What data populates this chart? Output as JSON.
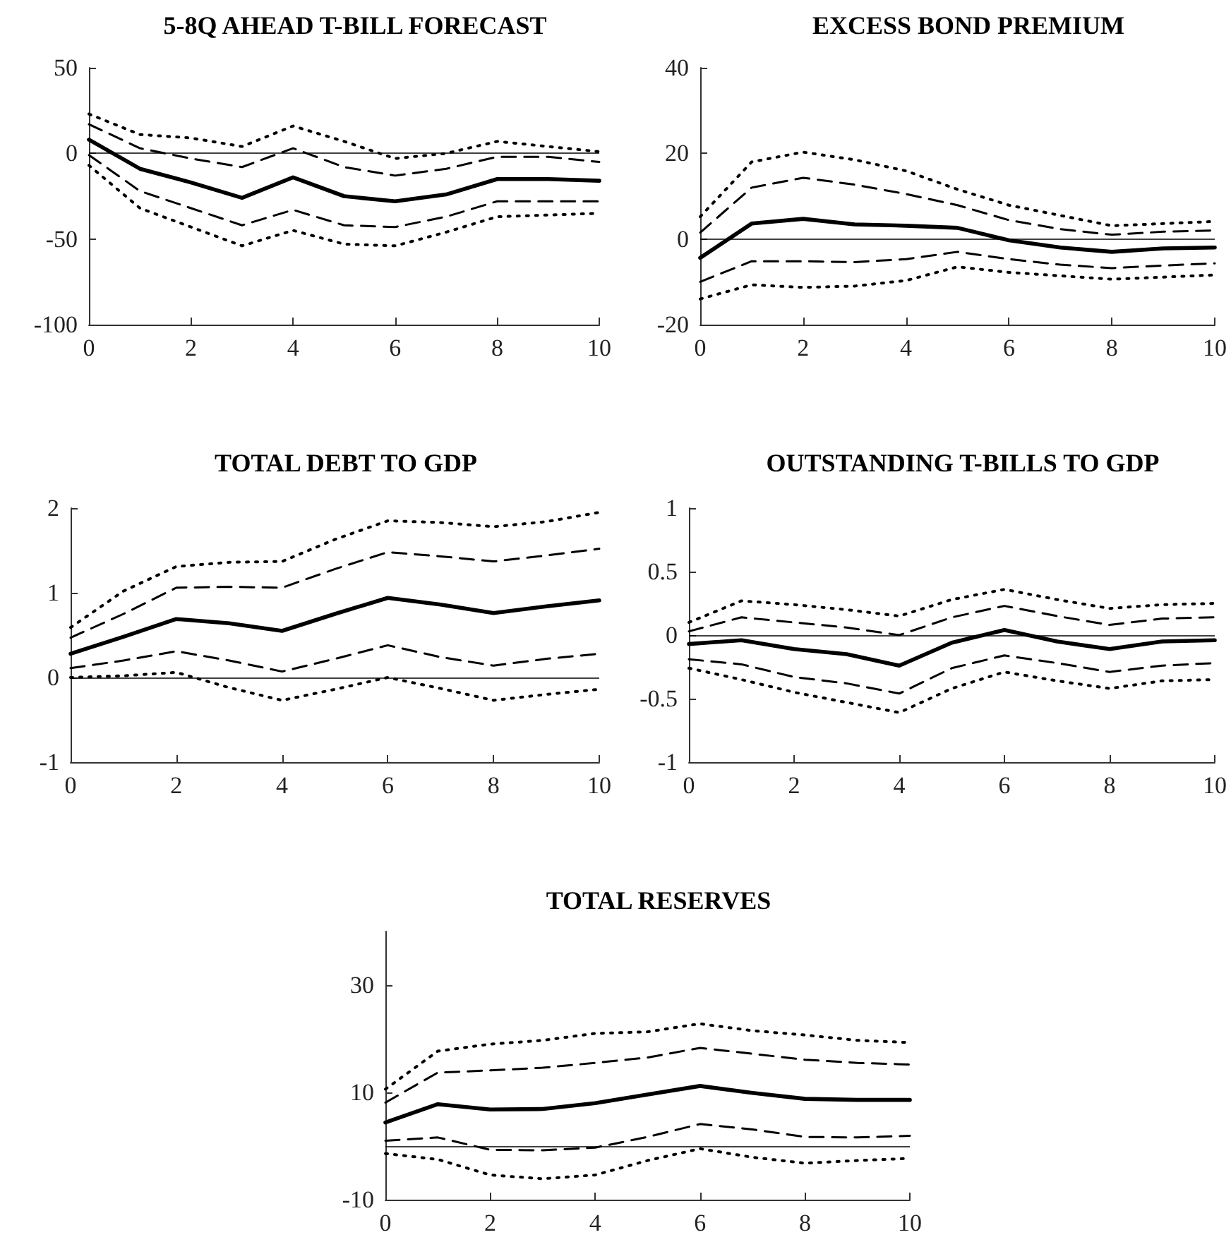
{
  "chart_data": [
    {
      "type": "line",
      "title": "5-8Q AHEAD T-BILL FORECAST",
      "x": [
        0,
        1,
        2,
        3,
        4,
        5,
        6,
        7,
        8,
        9,
        10
      ],
      "xlim": [
        0,
        10
      ],
      "xticks": [
        0,
        2,
        4,
        6,
        8,
        10
      ],
      "ylim": [
        -100,
        50
      ],
      "yticks": [
        -100,
        -50,
        0,
        50
      ],
      "grid": false,
      "marker": "none",
      "ref_lines": [
        {
          "axis": "y",
          "value": 0,
          "color": "#000000"
        }
      ],
      "series": [
        {
          "color": "#000000",
          "line_style": "dotted",
          "values": [
            23,
            11,
            9,
            4,
            16,
            7,
            -3,
            0,
            7,
            4,
            1
          ]
        },
        {
          "color": "#000000",
          "line_style": "dashed",
          "values": [
            17,
            3,
            -3,
            -8,
            3,
            -8,
            -13,
            -9,
            -2,
            -2,
            -5
          ]
        },
        {
          "color": "#000000",
          "line_style": "solid",
          "values": [
            8,
            -9,
            -17,
            -26,
            -14,
            -25,
            -28,
            -24,
            -15,
            -15,
            -16
          ]
        },
        {
          "color": "#000000",
          "line_style": "dashed",
          "values": [
            -1,
            -22,
            -32,
            -42,
            -33,
            -42,
            -43,
            -37,
            -28,
            -28,
            -28
          ]
        },
        {
          "color": "#000000",
          "line_style": "dotted",
          "values": [
            -7,
            -32,
            -43,
            -54,
            -45,
            -53,
            -54,
            -46,
            -37,
            -36,
            -35
          ]
        }
      ]
    },
    {
      "type": "line",
      "title": "EXCESS BOND PREMIUM",
      "x": [
        0,
        1,
        2,
        3,
        4,
        5,
        6,
        7,
        8,
        9,
        10
      ],
      "xlim": [
        0,
        10
      ],
      "xticks": [
        0,
        2,
        4,
        6,
        8,
        10
      ],
      "ylim": [
        -20,
        40
      ],
      "yticks": [
        -20,
        0,
        20,
        40
      ],
      "grid": false,
      "marker": "none",
      "ref_lines": [
        {
          "axis": "y",
          "value": 0,
          "color": "#000000"
        }
      ],
      "series": [
        {
          "color": "#000000",
          "line_style": "dotted",
          "values": [
            5.2,
            18,
            20.3,
            18.5,
            15.9,
            11.6,
            7.9,
            5.5,
            3.1,
            3.6,
            4.1
          ]
        },
        {
          "color": "#000000",
          "line_style": "dashed",
          "values": [
            1.5,
            12,
            14.3,
            12.7,
            10.5,
            7.9,
            4.4,
            2.3,
            1,
            1.7,
            2
          ]
        },
        {
          "color": "#000000",
          "line_style": "solid",
          "values": [
            -4.4,
            3.6,
            4.7,
            3.4,
            3.1,
            2.6,
            -0.3,
            -2,
            -3,
            -2.2,
            -2
          ]
        },
        {
          "color": "#000000",
          "line_style": "dashed",
          "values": [
            -10,
            -5.2,
            -5.2,
            -5.4,
            -4.7,
            -3,
            -4.7,
            -6,
            -6.8,
            -6.2,
            -5.7
          ]
        },
        {
          "color": "#000000",
          "line_style": "dotted",
          "values": [
            -14,
            -10.7,
            -11.3,
            -11,
            -9.7,
            -6.5,
            -7.8,
            -8.6,
            -9.4,
            -8.9,
            -8.4
          ]
        }
      ]
    },
    {
      "type": "line",
      "title": "TOTAL DEBT TO GDP",
      "x": [
        0,
        1,
        2,
        3,
        4,
        5,
        6,
        7,
        8,
        9,
        10
      ],
      "xlim": [
        0,
        10
      ],
      "xticks": [
        0,
        2,
        4,
        6,
        8,
        10
      ],
      "ylim": [
        -1,
        2
      ],
      "yticks": [
        -1,
        0,
        1,
        2
      ],
      "grid": false,
      "marker": "none",
      "ref_lines": [
        {
          "axis": "y",
          "value": 0,
          "color": "#000000"
        }
      ],
      "series": [
        {
          "color": "#000000",
          "line_style": "dotted",
          "values": [
            0.59,
            1.02,
            1.31,
            1.36,
            1.37,
            1.63,
            1.85,
            1.83,
            1.78,
            1.84,
            1.95
          ]
        },
        {
          "color": "#000000",
          "line_style": "dashed",
          "values": [
            0.47,
            0.75,
            1.06,
            1.07,
            1.06,
            1.28,
            1.48,
            1.43,
            1.37,
            1.44,
            1.52
          ]
        },
        {
          "color": "#000000",
          "line_style": "solid",
          "values": [
            0.28,
            0.48,
            0.69,
            0.64,
            0.55,
            0.75,
            0.94,
            0.86,
            0.76,
            0.84,
            0.91
          ]
        },
        {
          "color": "#000000",
          "line_style": "dashed",
          "values": [
            0.11,
            0.2,
            0.31,
            0.2,
            0.07,
            0.22,
            0.38,
            0.24,
            0.14,
            0.22,
            0.28
          ]
        },
        {
          "color": "#000000",
          "line_style": "dotted",
          "values": [
            0,
            0.02,
            0.06,
            -0.12,
            -0.27,
            -0.14,
            0,
            -0.13,
            -0.27,
            -0.2,
            -0.14
          ]
        }
      ]
    },
    {
      "type": "line",
      "title": "OUTSTANDING T-BILLS TO GDP",
      "x": [
        0,
        1,
        2,
        3,
        4,
        5,
        6,
        7,
        8,
        9,
        10
      ],
      "xlim": [
        0,
        10
      ],
      "xticks": [
        0,
        2,
        4,
        6,
        8,
        10
      ],
      "ylim": [
        -1,
        1
      ],
      "yticks": [
        -1,
        -0.5,
        0,
        0.5,
        1
      ],
      "grid": false,
      "marker": "none",
      "ref_lines": [
        {
          "axis": "y",
          "value": 0,
          "color": "#000000"
        }
      ],
      "series": [
        {
          "color": "#000000",
          "line_style": "dotted",
          "values": [
            0.1,
            0.27,
            0.24,
            0.2,
            0.15,
            0.28,
            0.36,
            0.28,
            0.21,
            0.24,
            0.25
          ]
        },
        {
          "color": "#000000",
          "line_style": "dashed",
          "values": [
            0.03,
            0.14,
            0.1,
            0.06,
            0,
            0.14,
            0.23,
            0.15,
            0.08,
            0.13,
            0.14
          ]
        },
        {
          "color": "#000000",
          "line_style": "solid",
          "values": [
            -0.07,
            -0.04,
            -0.11,
            -0.15,
            -0.24,
            -0.06,
            0.04,
            -0.05,
            -0.11,
            -0.05,
            -0.04
          ]
        },
        {
          "color": "#000000",
          "line_style": "dashed",
          "values": [
            -0.19,
            -0.23,
            -0.33,
            -0.38,
            -0.46,
            -0.26,
            -0.16,
            -0.22,
            -0.29,
            -0.24,
            -0.22
          ]
        },
        {
          "color": "#000000",
          "line_style": "dotted",
          "values": [
            -0.26,
            -0.35,
            -0.45,
            -0.53,
            -0.61,
            -0.42,
            -0.29,
            -0.36,
            -0.42,
            -0.36,
            -0.35
          ]
        }
      ]
    },
    {
      "type": "line",
      "title": "TOTAL RESERVES",
      "x": [
        0,
        1,
        2,
        3,
        4,
        5,
        6,
        7,
        8,
        9,
        10
      ],
      "xlim": [
        0,
        10
      ],
      "xticks": [
        0,
        2,
        4,
        6,
        8,
        10
      ],
      "ylim": [
        -10,
        40
      ],
      "yticks": [
        -10,
        10,
        30
      ],
      "grid": false,
      "marker": "none",
      "ref_lines": [
        {
          "axis": "y",
          "value": 0,
          "color": "#000000"
        }
      ],
      "series": [
        {
          "color": "#000000",
          "line_style": "dotted",
          "values": [
            10.6,
            17.7,
            19,
            19.7,
            21,
            21.3,
            22.8,
            21.5,
            20.7,
            19.7,
            19.3
          ]
        },
        {
          "color": "#000000",
          "line_style": "dashed",
          "values": [
            8.1,
            13.7,
            14.1,
            14.6,
            15.5,
            16.5,
            18.3,
            17.2,
            16.1,
            15.5,
            15.2
          ]
        },
        {
          "color": "#000000",
          "line_style": "solid",
          "values": [
            4.4,
            7.8,
            6.8,
            6.9,
            8,
            9.6,
            11.2,
            9.9,
            8.8,
            8.6,
            8.6
          ]
        },
        {
          "color": "#000000",
          "line_style": "dashed",
          "values": [
            1,
            1.6,
            -0.7,
            -0.8,
            -0.3,
            1.7,
            4.1,
            3.1,
            1.7,
            1.6,
            1.9
          ]
        },
        {
          "color": "#000000",
          "line_style": "dotted",
          "values": [
            -1.4,
            -2.5,
            -5.4,
            -6.1,
            -5.4,
            -2.7,
            -0.5,
            -2.1,
            -3.2,
            -2.7,
            -2.3
          ]
        }
      ]
    }
  ]
}
